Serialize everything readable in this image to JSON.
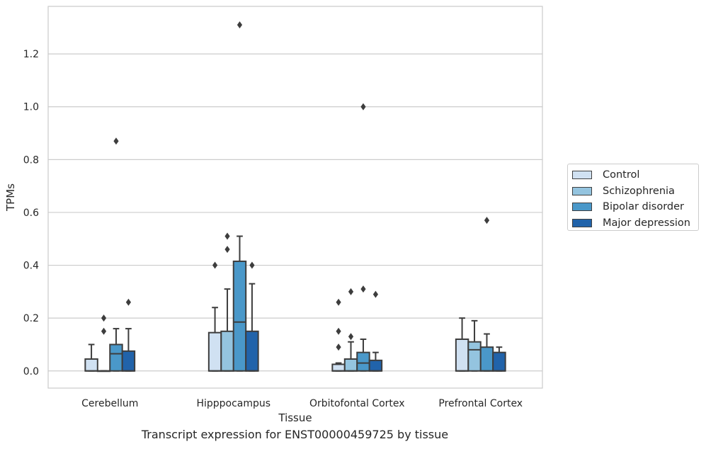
{
  "caption": "Transcript expression for ENST00000459725 by tissue",
  "chart_data": {
    "type": "boxplot",
    "xlabel": "Tissue",
    "ylabel": "TPMs",
    "ylim": [
      -0.065,
      1.38
    ],
    "yticks": [
      "0.0",
      "0.2",
      "0.4",
      "0.6",
      "0.8",
      "1.0",
      "1.2"
    ],
    "ytick_values": [
      0.0,
      0.2,
      0.4,
      0.6,
      0.8,
      1.0,
      1.2
    ],
    "grid": "horizontal",
    "legend_position": "right",
    "categories": [
      "Cerebellum",
      "Hipppocampus",
      "Orbitofontal Cortex",
      "Prefrontal Cortex"
    ],
    "series": [
      {
        "name": "Control",
        "color": "#d0e1f2",
        "boxes": [
          {
            "q1": 0.0,
            "median": 0.0,
            "q3": 0.045,
            "whisker_low": 0.0,
            "whisker_high": 0.1,
            "outliers": []
          },
          {
            "q1": 0.0,
            "median": 0.0,
            "q3": 0.145,
            "whisker_low": 0.0,
            "whisker_high": 0.24,
            "outliers": [
              0.4
            ]
          },
          {
            "q1": 0.0,
            "median": 0.0,
            "q3": 0.025,
            "whisker_low": 0.0,
            "whisker_high": 0.03,
            "outliers": [
              0.09,
              0.15,
              0.26
            ]
          },
          {
            "q1": 0.0,
            "median": 0.0,
            "q3": 0.12,
            "whisker_low": 0.0,
            "whisker_high": 0.2,
            "outliers": []
          }
        ]
      },
      {
        "name": "Schizophrenia",
        "color": "#94c4df",
        "boxes": [
          {
            "q1": 0.0,
            "median": 0.0,
            "q3": 0.0,
            "whisker_low": 0.0,
            "whisker_high": 0.0,
            "outliers": [
              0.15,
              0.2
            ]
          },
          {
            "q1": 0.0,
            "median": 0.0,
            "q3": 0.15,
            "whisker_low": 0.0,
            "whisker_high": 0.31,
            "outliers": [
              0.46,
              0.51
            ]
          },
          {
            "q1": 0.0,
            "median": 0.0,
            "q3": 0.045,
            "whisker_low": 0.0,
            "whisker_high": 0.11,
            "outliers": [
              0.13,
              0.3
            ]
          },
          {
            "q1": 0.0,
            "median": 0.08,
            "q3": 0.11,
            "whisker_low": 0.0,
            "whisker_high": 0.19,
            "outliers": []
          }
        ]
      },
      {
        "name": "Bipolar disorder",
        "color": "#4a98c9",
        "boxes": [
          {
            "q1": 0.0,
            "median": 0.065,
            "q3": 0.1,
            "whisker_low": 0.0,
            "whisker_high": 0.16,
            "outliers": [
              0.87
            ]
          },
          {
            "q1": 0.0,
            "median": 0.185,
            "q3": 0.415,
            "whisker_low": 0.0,
            "whisker_high": 0.51,
            "outliers": [
              1.31
            ]
          },
          {
            "q1": 0.0,
            "median": 0.03,
            "q3": 0.07,
            "whisker_low": 0.0,
            "whisker_high": 0.12,
            "outliers": [
              0.31,
              1.0
            ]
          },
          {
            "q1": 0.0,
            "median": 0.0,
            "q3": 0.09,
            "whisker_low": 0.0,
            "whisker_high": 0.14,
            "outliers": [
              0.57
            ]
          }
        ]
      },
      {
        "name": "Major depression",
        "color": "#2163aa",
        "boxes": [
          {
            "q1": 0.0,
            "median": 0.0,
            "q3": 0.075,
            "whisker_low": 0.0,
            "whisker_high": 0.16,
            "outliers": [
              0.26
            ]
          },
          {
            "q1": 0.0,
            "median": 0.0,
            "q3": 0.15,
            "whisker_low": 0.0,
            "whisker_high": 0.33,
            "outliers": [
              0.4
            ]
          },
          {
            "q1": 0.0,
            "median": 0.0,
            "q3": 0.04,
            "whisker_low": 0.0,
            "whisker_high": 0.07,
            "outliers": [
              0.29
            ]
          },
          {
            "q1": 0.0,
            "median": 0.0,
            "q3": 0.07,
            "whisker_low": 0.0,
            "whisker_high": 0.09,
            "outliers": []
          }
        ]
      }
    ]
  }
}
